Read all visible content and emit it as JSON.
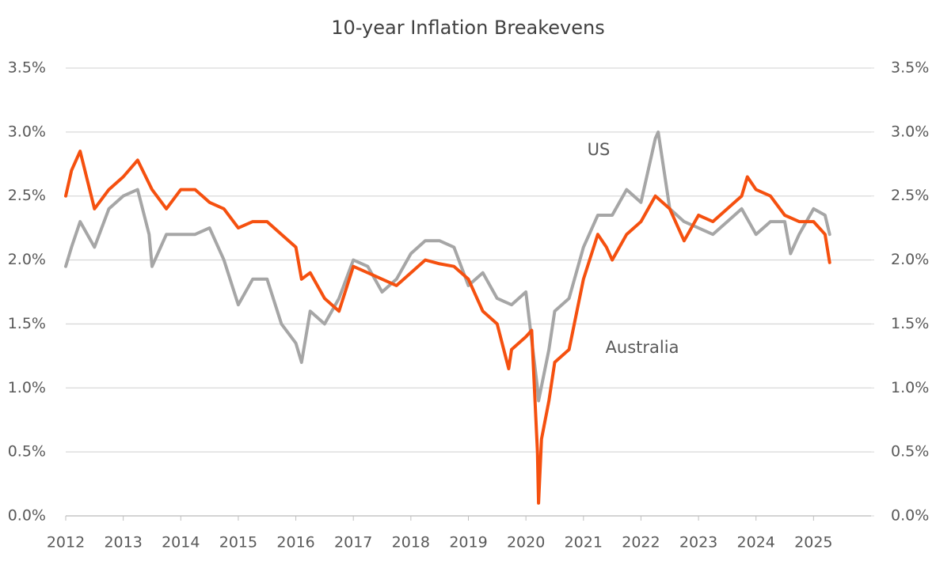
{
  "chart_data": {
    "type": "line",
    "title": "10-year Inflation Breakevens",
    "xlim": [
      2012,
      2026
    ],
    "xticks": [
      2012,
      2013,
      2014,
      2015,
      2016,
      2017,
      2018,
      2019,
      2020,
      2021,
      2022,
      2023,
      2024,
      2025
    ],
    "ylim": [
      0,
      3.5
    ],
    "yticks": [
      {
        "value": 0,
        "label": "0.0%"
      },
      {
        "value": 0.5,
        "label": "0.5%"
      },
      {
        "value": 1,
        "label": "1.0%"
      },
      {
        "value": 1.5,
        "label": "1.5%"
      },
      {
        "value": 2,
        "label": "2.0%"
      },
      {
        "value": 2.5,
        "label": "2.5%"
      },
      {
        "value": 3,
        "label": "3.0%"
      },
      {
        "value": 3.5,
        "label": "3.5%"
      }
    ],
    "y2lim": [
      0,
      3.5
    ],
    "y2ticks": [
      {
        "value": 0,
        "label": "0.0%"
      },
      {
        "value": 0.5,
        "label": "0.5%"
      },
      {
        "value": 1,
        "label": "1.0%"
      },
      {
        "value": 1.5,
        "label": "1.5%"
      },
      {
        "value": 2,
        "label": "2.0%"
      },
      {
        "value": 2.5,
        "label": "2.5%"
      },
      {
        "value": 3,
        "label": "3.0%"
      },
      {
        "value": 3.5,
        "label": "3.5%"
      }
    ],
    "grid": true,
    "series": [
      {
        "name": "US",
        "color": "#a6a6a6",
        "x": [
          2012.0,
          2012.1,
          2012.25,
          2012.5,
          2012.75,
          2013.0,
          2013.25,
          2013.45,
          2013.5,
          2013.75,
          2014.0,
          2014.25,
          2014.5,
          2014.75,
          2015.0,
          2015.25,
          2015.5,
          2015.75,
          2016.0,
          2016.1,
          2016.25,
          2016.5,
          2016.75,
          2017.0,
          2017.25,
          2017.5,
          2017.75,
          2018.0,
          2018.25,
          2018.5,
          2018.75,
          2019.0,
          2019.25,
          2019.5,
          2019.75,
          2020.0,
          2020.2,
          2020.22,
          2020.4,
          2020.5,
          2020.75,
          2021.0,
          2021.25,
          2021.5,
          2021.75,
          2022.0,
          2022.25,
          2022.3,
          2022.5,
          2022.75,
          2023.0,
          2023.25,
          2023.5,
          2023.75,
          2024.0,
          2024.25,
          2024.5,
          2024.6,
          2024.75,
          2025.0,
          2025.2,
          2025.28
        ],
        "values": [
          1.95,
          2.1,
          2.3,
          2.1,
          2.4,
          2.5,
          2.55,
          2.2,
          1.95,
          2.2,
          2.2,
          2.2,
          2.25,
          2.0,
          1.65,
          1.85,
          1.85,
          1.5,
          1.35,
          1.2,
          1.6,
          1.5,
          1.7,
          2.0,
          1.95,
          1.75,
          1.85,
          2.05,
          2.15,
          2.15,
          2.1,
          1.8,
          1.9,
          1.7,
          1.65,
          1.75,
          1.0,
          0.9,
          1.3,
          1.6,
          1.7,
          2.1,
          2.35,
          2.35,
          2.55,
          2.45,
          2.95,
          3.0,
          2.4,
          2.3,
          2.25,
          2.2,
          2.3,
          2.4,
          2.2,
          2.3,
          2.3,
          2.05,
          2.2,
          2.4,
          2.35,
          2.2
        ]
      },
      {
        "name": "Australia",
        "color": "#f5500f",
        "x": [
          2012.0,
          2012.1,
          2012.25,
          2012.5,
          2012.75,
          2013.0,
          2013.25,
          2013.5,
          2013.75,
          2014.0,
          2014.25,
          2014.5,
          2014.75,
          2015.0,
          2015.25,
          2015.5,
          2015.75,
          2016.0,
          2016.1,
          2016.25,
          2016.5,
          2016.75,
          2017.0,
          2017.25,
          2017.5,
          2017.75,
          2018.0,
          2018.25,
          2018.5,
          2018.75,
          2019.0,
          2019.25,
          2019.5,
          2019.7,
          2019.75,
          2020.0,
          2020.1,
          2020.2,
          2020.22,
          2020.27,
          2020.4,
          2020.5,
          2020.75,
          2021.0,
          2021.25,
          2021.4,
          2021.5,
          2021.75,
          2022.0,
          2022.25,
          2022.5,
          2022.75,
          2023.0,
          2023.25,
          2023.5,
          2023.75,
          2023.85,
          2024.0,
          2024.25,
          2024.5,
          2024.75,
          2025.0,
          2025.2,
          2025.28
        ],
        "values": [
          2.5,
          2.7,
          2.85,
          2.4,
          2.55,
          2.65,
          2.78,
          2.55,
          2.4,
          2.55,
          2.55,
          2.45,
          2.4,
          2.25,
          2.3,
          2.3,
          2.2,
          2.1,
          1.85,
          1.9,
          1.7,
          1.6,
          1.95,
          1.9,
          1.85,
          1.8,
          1.9,
          2.0,
          1.97,
          1.95,
          1.85,
          1.6,
          1.5,
          1.15,
          1.3,
          1.4,
          1.45,
          0.5,
          0.1,
          0.6,
          0.9,
          1.2,
          1.3,
          1.85,
          2.2,
          2.1,
          2.0,
          2.2,
          2.3,
          2.5,
          2.4,
          2.15,
          2.35,
          2.3,
          2.4,
          2.5,
          2.65,
          2.55,
          2.5,
          2.35,
          2.3,
          2.3,
          2.2,
          1.98
        ]
      }
    ]
  }
}
